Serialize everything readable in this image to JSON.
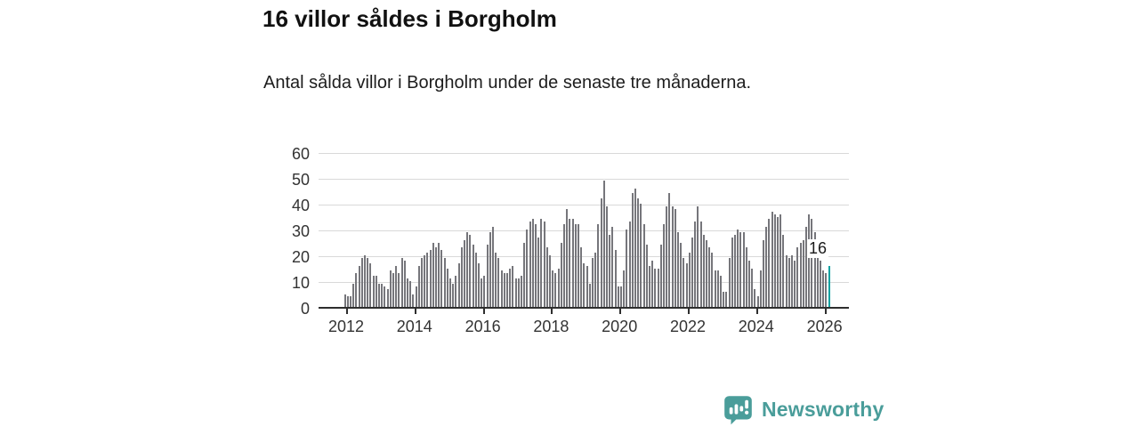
{
  "header": {
    "title": "16 villor såldes i Borgholm",
    "subtitle": "Antal sålda villor i Borgholm under de senaste tre månaderna."
  },
  "chart_data": {
    "type": "bar",
    "title": "16 villor såldes i Borgholm",
    "xlabel": "",
    "ylabel": "",
    "ylim": [
      0,
      60
    ],
    "grid": true,
    "y_ticks": [
      0,
      10,
      20,
      30,
      40,
      50,
      60
    ],
    "x_tick_labels": [
      "2012",
      "2014",
      "2016",
      "2018",
      "2020",
      "2022",
      "2024",
      "2026"
    ],
    "x_range": "Jan 2012 - Mar 2026, monthly",
    "bar_color": "#76767b",
    "highlight": {
      "index_from_end": 1,
      "value": 16,
      "label": "16",
      "color": "#0aa2a2"
    },
    "series": [
      {
        "name": "Antal sålda villor (rullande tre månader)",
        "values": [
          5,
          4,
          4,
          9,
          13,
          16,
          19,
          20,
          19,
          17,
          12,
          12,
          9,
          9,
          8,
          7,
          14,
          13,
          16,
          13,
          19,
          18,
          11,
          10,
          5,
          8,
          16,
          19,
          20,
          21,
          22,
          25,
          23,
          25,
          22,
          19,
          15,
          11,
          9,
          12,
          17,
          23,
          26,
          29,
          28,
          24,
          21,
          17,
          11,
          12,
          24,
          29,
          31,
          21,
          19,
          14,
          13,
          13,
          15,
          16,
          11,
          11,
          12,
          25,
          30,
          33,
          34,
          32,
          27,
          34,
          33,
          23,
          20,
          14,
          13,
          15,
          25,
          32,
          38,
          34,
          34,
          32,
          32,
          23,
          17,
          16,
          9,
          19,
          21,
          32,
          42,
          49,
          39,
          28,
          31,
          22,
          8,
          8,
          14,
          30,
          33,
          44,
          46,
          42,
          40,
          32,
          24,
          16,
          18,
          15,
          15,
          24,
          32,
          39,
          44,
          39,
          38,
          29,
          25,
          19,
          17,
          21,
          27,
          33,
          39,
          33,
          28,
          26,
          23,
          21,
          14,
          14,
          12,
          6,
          6,
          19,
          27,
          28,
          30,
          29,
          29,
          23,
          18,
          15,
          7,
          4,
          14,
          26,
          31,
          34,
          37,
          36,
          35,
          36,
          28,
          20,
          19,
          20,
          18,
          23,
          25,
          26,
          31,
          36,
          34,
          29,
          23,
          18,
          14,
          13,
          16
        ]
      }
    ]
  },
  "branding": {
    "logo_text": "Newsworthy",
    "logo_color": "#4a9d9a",
    "logo_icon": "newsworthy-speech-bubble-bars-icon"
  }
}
